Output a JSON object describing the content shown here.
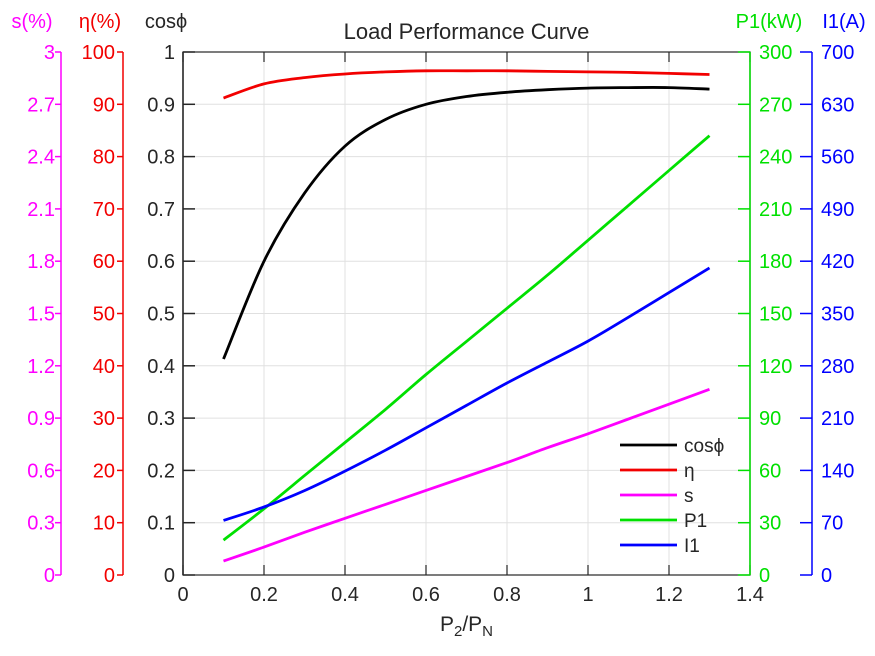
{
  "title": "Load Performance Curve",
  "chart_data": {
    "type": "line",
    "title": "Load Performance Curve",
    "xlabel": "P_2/P_N",
    "xlabel_parts": {
      "main1": "P",
      "sub1": "2",
      "main2": "/P",
      "sub2": "N"
    },
    "xlim": [
      0,
      1.4
    ],
    "x_ticks": [
      "0",
      "0.2",
      "0.4",
      "0.6",
      "0.8",
      "1",
      "1.2",
      "1.4"
    ],
    "grid": true,
    "legend_position": "lower right",
    "x": [
      0.1,
      0.2,
      0.3,
      0.4,
      0.5,
      0.6,
      0.7,
      0.8,
      0.9,
      1.0,
      1.1,
      1.2,
      1.3
    ],
    "axes": [
      {
        "id": "s",
        "label": "s(%)",
        "color": "#FF00FF",
        "min": 0,
        "max": 3,
        "ticks": [
          "0",
          "0.3",
          "0.6",
          "0.9",
          "1.2",
          "1.5",
          "1.8",
          "2.1",
          "2.4",
          "2.7",
          "3"
        ]
      },
      {
        "id": "eta",
        "label": "η(%)",
        "color": "#F20000",
        "min": 0,
        "max": 100,
        "ticks": [
          "0",
          "10",
          "20",
          "30",
          "40",
          "50",
          "60",
          "70",
          "80",
          "90",
          "100"
        ]
      },
      {
        "id": "cosphi",
        "label": "cosϕ",
        "color": "#262626",
        "min": 0,
        "max": 1,
        "ticks": [
          "0",
          "0.1",
          "0.2",
          "0.3",
          "0.4",
          "0.5",
          "0.6",
          "0.7",
          "0.8",
          "0.9",
          "1"
        ]
      },
      {
        "id": "P1",
        "label": "P1(kW)",
        "color": "#00E000",
        "min": 0,
        "max": 300,
        "ticks": [
          "0",
          "30",
          "60",
          "90",
          "120",
          "150",
          "180",
          "210",
          "240",
          "270",
          "300"
        ]
      },
      {
        "id": "I1",
        "label": "I1(A)",
        "color": "#0000FF",
        "min": 0,
        "max": 700,
        "ticks": [
          "0",
          "70",
          "140",
          "210",
          "280",
          "350",
          "420",
          "490",
          "560",
          "630",
          "700"
        ]
      }
    ],
    "series": [
      {
        "id": "cosphi",
        "name": "cosϕ",
        "axis": "cosphi",
        "color": "#000000",
        "values": [
          0.413,
          0.6,
          0.73,
          0.82,
          0.871,
          0.9,
          0.915,
          0.923,
          0.928,
          0.931,
          0.932,
          0.932,
          0.929
        ]
      },
      {
        "id": "eta",
        "name": "η",
        "axis": "eta",
        "color": "#F20000",
        "values": [
          91.2,
          93.9,
          95.1,
          95.8,
          96.2,
          96.4,
          96.4,
          96.4,
          96.3,
          96.2,
          96.1,
          95.9,
          95.7
        ]
      },
      {
        "id": "s",
        "name": "s",
        "axis": "s",
        "color": "#FF00FF",
        "values": [
          0.08,
          0.16,
          0.245,
          0.325,
          0.405,
          0.485,
          0.565,
          0.645,
          0.73,
          0.81,
          0.895,
          0.98,
          1.065
        ]
      },
      {
        "id": "P1",
        "name": "P1",
        "axis": "P1",
        "color": "#00E000",
        "values": [
          20,
          38,
          57,
          76,
          95,
          115,
          134,
          153,
          172,
          192,
          212,
          232,
          252
        ]
      },
      {
        "id": "I1",
        "name": "I1",
        "axis": "I1",
        "color": "#0000FF",
        "values": [
          73,
          91,
          113,
          139,
          167,
          197,
          227,
          257,
          285,
          313,
          345,
          378,
          411
        ]
      }
    ],
    "colors": {
      "grid": "#E0E0E0",
      "box": "#262626",
      "text": "#262626",
      "background": "#FFFFFF"
    }
  }
}
